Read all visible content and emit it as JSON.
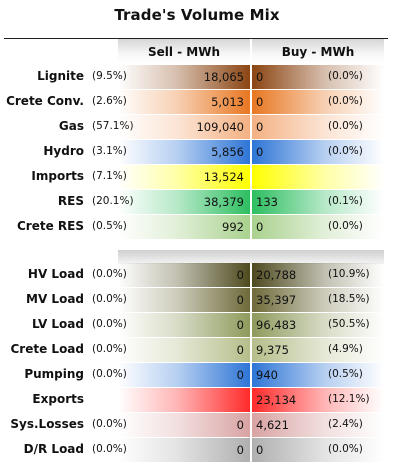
{
  "title": "Trade's Volume Mix",
  "headers": {
    "sell": "Sell - MWh",
    "buy": "Buy - MWh"
  },
  "chart_data": {
    "type": "table",
    "columns": [
      "Sell - MWh",
      "Buy - MWh"
    ],
    "rows": [
      {
        "label": "Lignite",
        "sell_pct": "(9.5%)",
        "sell": "18,065",
        "buy": "0",
        "buy_pct": "(0.0%)",
        "sell_color": "#8B4513",
        "buy_color": "#8B4513"
      },
      {
        "label": "Crete Conv.",
        "sell_pct": "(2.6%)",
        "sell": "5,013",
        "buy": "0",
        "buy_pct": "(0.0%)",
        "sell_color": "#E87722",
        "buy_color": "#E87722"
      },
      {
        "label": "Gas",
        "sell_pct": "(57.1%)",
        "sell": "109,040",
        "buy": "0",
        "buy_pct": "(0.0%)",
        "sell_color": "#F4B183",
        "buy_color": "#F4B183"
      },
      {
        "label": "Hydro",
        "sell_pct": "(3.1%)",
        "sell": "5,856",
        "buy": "0",
        "buy_pct": "(0.0%)",
        "sell_color": "#2E75D6",
        "buy_color": "#2E75D6"
      },
      {
        "label": "Imports",
        "sell_pct": "(7.1%)",
        "sell": "13,524",
        "buy": "",
        "buy_pct": "",
        "sell_color": "#FFFF00",
        "buy_color": "#FFFF00"
      },
      {
        "label": "RES",
        "sell_pct": "(20.1%)",
        "sell": "38,379",
        "buy": "133",
        "buy_pct": "(0.1%)",
        "sell_color": "#2DBE60",
        "buy_color": "#2DBE60"
      },
      {
        "label": "Crete RES",
        "sell_pct": "(0.5%)",
        "sell": "992",
        "buy": "0",
        "buy_pct": "(0.0%)",
        "sell_color": "#A9D18E",
        "buy_color": "#A9D18E"
      },
      {
        "label": "HV Load",
        "sell_pct": "(0.0%)",
        "sell": "0",
        "buy": "20,788",
        "buy_pct": "(10.9%)",
        "sell_color": "#4E4A1E",
        "buy_color": "#4E4A1E"
      },
      {
        "label": "MV Load",
        "sell_pct": "(0.0%)",
        "sell": "0",
        "buy": "35,397",
        "buy_pct": "(18.5%)",
        "sell_color": "#6E6A3A",
        "buy_color": "#6E6A3A"
      },
      {
        "label": "LV Load",
        "sell_pct": "(0.0%)",
        "sell": "0",
        "buy": "96,483",
        "buy_pct": "(50.5%)",
        "sell_color": "#8E9A5C",
        "buy_color": "#8E9A5C"
      },
      {
        "label": "Crete Load",
        "sell_pct": "(0.0%)",
        "sell": "0",
        "buy": "9,375",
        "buy_pct": "(4.9%)",
        "sell_color": "#B5BE8A",
        "buy_color": "#B5BE8A"
      },
      {
        "label": "Pumping",
        "sell_pct": "(0.0%)",
        "sell": "0",
        "buy": "940",
        "buy_pct": "(0.5%)",
        "sell_color": "#2E75D6",
        "buy_color": "#2E75D6"
      },
      {
        "label": "Exports",
        "sell_pct": "",
        "sell": "",
        "buy": "23,134",
        "buy_pct": "(12.1%)",
        "sell_color": "#FF2A2A",
        "buy_color": "#FF2A2A"
      },
      {
        "label": "Sys.Losses",
        "sell_pct": "(0.0%)",
        "sell": "0",
        "buy": "4,621",
        "buy_pct": "(2.4%)",
        "sell_color": "#D9A3A3",
        "buy_color": "#D9A3A3"
      },
      {
        "label": "D/R Load",
        "sell_pct": "(0.0%)",
        "sell": "0",
        "buy": "0",
        "buy_pct": "(0.0%)",
        "sell_color": "#AFAFAF",
        "buy_color": "#AFAFAF"
      }
    ]
  }
}
